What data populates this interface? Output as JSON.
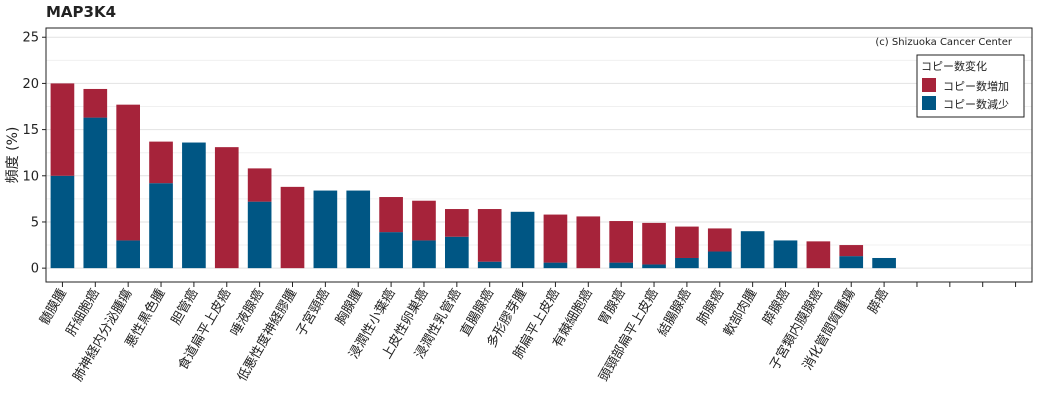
{
  "chart_data": {
    "type": "bar",
    "stacked": true,
    "title": "MAP3K4",
    "credit": "(c) Shizuoka Cancer Center",
    "ylabel": "頻度 (%)",
    "xlabel": "",
    "ylim": [
      -1.5,
      26
    ],
    "yticks": [
      0,
      5,
      10,
      15,
      20,
      25
    ],
    "grid": true,
    "legend": {
      "title": "コピー数変化",
      "placement": "top-right",
      "entries": [
        {
          "label": "コピー数増加",
          "color": "#A6233A"
        },
        {
          "label": "コピー数減少",
          "color": "#005684"
        }
      ]
    },
    "categories": [
      "髄膜腫",
      "肝細胞癌",
      "肺神経内分泌腫瘍",
      "悪性黒色腫",
      "胆管癌",
      "食道扁平上皮癌",
      "唾液腺癌",
      "低悪性度神経膠腫",
      "子宮頸癌",
      "胸腺腫",
      "浸潤性小葉癌",
      "上皮性卵巣癌",
      "浸潤性乳管癌",
      "直腸腺癌",
      "多形膠芽腫",
      "肺扁平上皮癌",
      "有棘細胞癌",
      "胃腺癌",
      "頭頸部扁平上皮癌",
      "結腸腺癌",
      "肺腺癌",
      "軟部肉腫",
      "膵腺癌",
      "子宮類内膜腺癌",
      "消化管間質腫瘍",
      "膵癌",
      "",
      "",
      "",
      ""
    ],
    "series": [
      {
        "name": "コピー数減少",
        "color": "#005684",
        "values": [
          10.0,
          16.3,
          3.0,
          9.2,
          13.6,
          0,
          7.2,
          0,
          8.4,
          8.4,
          3.9,
          3.0,
          3.4,
          0.7,
          6.1,
          0.6,
          0,
          0.6,
          0.4,
          1.1,
          1.8,
          4.0,
          3.0,
          0,
          1.3,
          1.1,
          0,
          0,
          0,
          0
        ]
      },
      {
        "name": "コピー数増加",
        "color": "#A6233A",
        "values": [
          10.0,
          3.1,
          14.7,
          4.5,
          0,
          13.1,
          3.6,
          8.8,
          0,
          0,
          3.8,
          4.3,
          3.0,
          5.7,
          0,
          5.2,
          5.6,
          4.5,
          4.5,
          3.4,
          2.5,
          0,
          0,
          2.9,
          1.2,
          0,
          0,
          0,
          0,
          0
        ]
      }
    ]
  }
}
